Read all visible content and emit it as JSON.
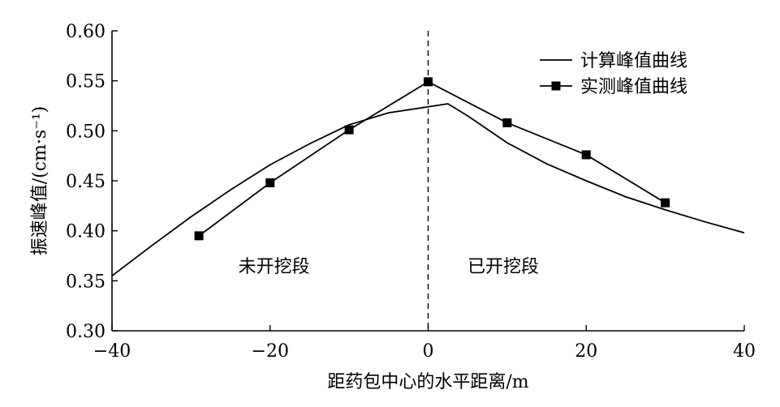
{
  "chart_data": {
    "type": "line",
    "title": "",
    "xlabel": "距药包中心的水平距离/m",
    "ylabel": "振速峰值/(cm·s⁻¹)",
    "xlim": [
      -40,
      40
    ],
    "ylim": [
      0.3,
      0.6
    ],
    "x_ticks": [
      "−40",
      "−20",
      "0",
      "20",
      "40"
    ],
    "x_tick_values": [
      -40,
      -20,
      0,
      20,
      40
    ],
    "y_ticks": [
      "0.30",
      "0.35",
      "0.40",
      "0.45",
      "0.50",
      "0.55",
      "0.60"
    ],
    "y_tick_values": [
      0.3,
      0.35,
      0.4,
      0.45,
      0.5,
      0.55,
      0.6
    ],
    "grid": false,
    "legend_position": "top-right",
    "reference_line": {
      "x": 0,
      "style": "dashed"
    },
    "region_labels": [
      {
        "text": "未开挖段",
        "x": -19.5,
        "y": 0.365
      },
      {
        "text": "已开挖段",
        "x": 9.5,
        "y": 0.365
      }
    ],
    "series": [
      {
        "name": "计算峰值曲线",
        "style": "line",
        "color": "#000000",
        "x": [
          -40,
          -35,
          -30,
          -25,
          -20,
          -15,
          -10,
          -5,
          0,
          2.5,
          5,
          10,
          15,
          20,
          25,
          30,
          35,
          40
        ],
        "y": [
          0.355,
          0.385,
          0.414,
          0.441,
          0.466,
          0.487,
          0.506,
          0.518,
          0.524,
          0.527,
          0.515,
          0.488,
          0.467,
          0.45,
          0.434,
          0.421,
          0.409,
          0.398
        ]
      },
      {
        "name": "实测峰值曲线",
        "style": "line+square",
        "color": "#000000",
        "x": [
          -29,
          -20,
          -10,
          0,
          10,
          20,
          30
        ],
        "y": [
          0.395,
          0.448,
          0.501,
          0.549,
          0.508,
          0.476,
          0.428
        ]
      }
    ]
  }
}
